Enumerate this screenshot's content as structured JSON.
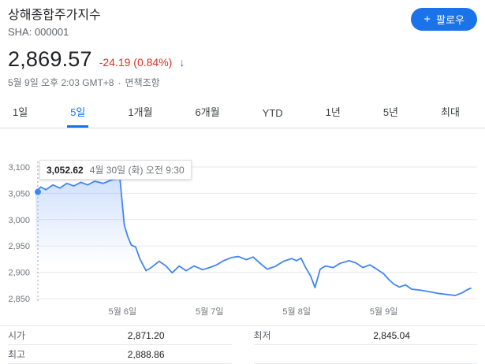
{
  "header": {
    "title": "상해종합주가지수",
    "ticker": "SHA: 000001",
    "follow": {
      "plus": "+",
      "label": "팔로우"
    },
    "price": "2,869.57",
    "change": "-24.19 (0.84%)",
    "change_arrow": "↓",
    "timestamp": "5월 9일 오후 2:03 GMT+8",
    "dot_separator": "·",
    "disclaimer": "면책조항"
  },
  "tabs": [
    {
      "label": "1일",
      "active": false
    },
    {
      "label": "5일",
      "active": true
    },
    {
      "label": "1개월",
      "active": false
    },
    {
      "label": "6개월",
      "active": false
    },
    {
      "label": "YTD",
      "active": false
    },
    {
      "label": "1년",
      "active": false
    },
    {
      "label": "5년",
      "active": false
    },
    {
      "label": "최대",
      "active": false
    }
  ],
  "tooltip": {
    "value": "3,052.62",
    "date": "4월 30일 (화) 오전 9:30"
  },
  "chart_data": {
    "type": "area",
    "title": "상해종합주가지수 5일 차트",
    "line_color": "#4285f4",
    "fill_top_opacity": 0.28,
    "grid_color": "#e8eaed",
    "y_ticks": [
      3100,
      3050,
      3000,
      2950,
      2900,
      2850
    ],
    "y_tick_labels": [
      "3,100",
      "3,050",
      "3,000",
      "2,950",
      "2,900",
      "2,850"
    ],
    "x_axis_labels": [
      "5월 6일",
      "5월 7일",
      "5월 8일",
      "5월 9일"
    ],
    "x_label_positions": [
      1,
      2,
      3,
      4
    ],
    "xlim": [
      0,
      5
    ],
    "ylim": [
      2850,
      3100
    ],
    "marker": {
      "x": 0,
      "value": 3052.62
    },
    "points": [
      [
        0,
        3052.62
      ],
      [
        0.06,
        3062
      ],
      [
        0.12,
        3057
      ],
      [
        0.2,
        3066
      ],
      [
        0.28,
        3060
      ],
      [
        0.36,
        3069
      ],
      [
        0.44,
        3064
      ],
      [
        0.52,
        3071
      ],
      [
        0.6,
        3066
      ],
      [
        0.68,
        3073
      ],
      [
        0.78,
        3069
      ],
      [
        0.88,
        3076
      ],
      [
        0.97,
        3078
      ],
      [
        1.02,
        2990
      ],
      [
        1.06,
        2968
      ],
      [
        1.1,
        2952
      ],
      [
        1.15,
        2948
      ],
      [
        1.2,
        2925
      ],
      [
        1.27,
        2903
      ],
      [
        1.33,
        2909
      ],
      [
        1.42,
        2921
      ],
      [
        1.5,
        2912
      ],
      [
        1.57,
        2899
      ],
      [
        1.65,
        2912
      ],
      [
        1.73,
        2903
      ],
      [
        1.82,
        2912
      ],
      [
        1.92,
        2905
      ],
      [
        2,
        2909
      ],
      [
        2.08,
        2914
      ],
      [
        2.16,
        2922
      ],
      [
        2.25,
        2928
      ],
      [
        2.33,
        2930
      ],
      [
        2.42,
        2924
      ],
      [
        2.5,
        2929
      ],
      [
        2.58,
        2917
      ],
      [
        2.66,
        2906
      ],
      [
        2.75,
        2911
      ],
      [
        2.85,
        2921
      ],
      [
        2.94,
        2926
      ],
      [
        3,
        2922
      ],
      [
        3.05,
        2927
      ],
      [
        3.1,
        2910
      ],
      [
        3.16,
        2893
      ],
      [
        3.21,
        2871
      ],
      [
        3.27,
        2906
      ],
      [
        3.33,
        2912
      ],
      [
        3.42,
        2909
      ],
      [
        3.5,
        2917
      ],
      [
        3.6,
        2922
      ],
      [
        3.68,
        2918
      ],
      [
        3.76,
        2909
      ],
      [
        3.84,
        2914
      ],
      [
        3.92,
        2906
      ],
      [
        4,
        2897
      ],
      [
        4.06,
        2886
      ],
      [
        4.12,
        2877
      ],
      [
        4.18,
        2872
      ],
      [
        4.25,
        2876
      ],
      [
        4.32,
        2868
      ],
      [
        4.42,
        2866
      ],
      [
        4.52,
        2863
      ],
      [
        4.62,
        2860
      ],
      [
        4.72,
        2858
      ],
      [
        4.82,
        2856
      ],
      [
        4.9,
        2861
      ],
      [
        4.96,
        2867
      ],
      [
        5,
        2869.57
      ]
    ]
  },
  "stats": {
    "open": {
      "label": "시가",
      "value": "2,871.20"
    },
    "high": {
      "label": "최고",
      "value": "2,888.86"
    },
    "low": {
      "label": "최저",
      "value": "2,845.04"
    }
  }
}
